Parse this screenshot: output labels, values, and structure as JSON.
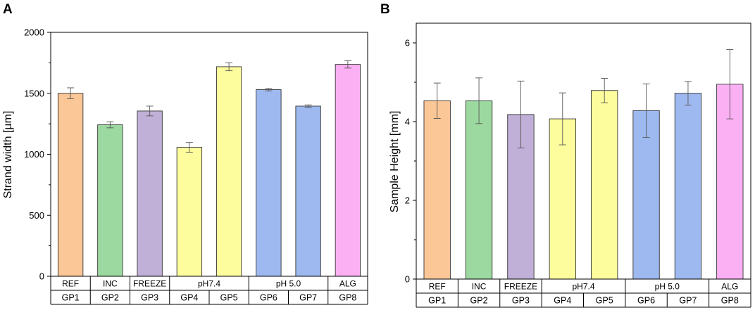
{
  "colors": {
    "GP1": "#fcc797",
    "GP2": "#9cd9a0",
    "GP3": "#c0afd6",
    "GP4": "#fdfd9e",
    "GP5": "#fdfd9e",
    "GP6": "#9eb9ef",
    "GP7": "#9eb9ef",
    "GP8": "#fcb0f4"
  },
  "chart_data": [
    {
      "panel": "A",
      "type": "bar",
      "ylabel": "Strand width [µm]",
      "ylim": [
        0,
        2000
      ],
      "yticks": [
        0,
        500,
        1000,
        1500,
        2000
      ],
      "categories": [
        "GP1",
        "GP2",
        "GP3",
        "GP4",
        "GP5",
        "GP6",
        "GP7",
        "GP8"
      ],
      "values": [
        1500,
        1242,
        1355,
        1057,
        1718,
        1530,
        1395,
        1737
      ],
      "errors": [
        45,
        25,
        40,
        40,
        33,
        10,
        10,
        30
      ],
      "groups": [
        {
          "label": "REF",
          "categories": [
            "GP1"
          ]
        },
        {
          "label": "INC",
          "categories": [
            "GP2"
          ]
        },
        {
          "label": "FREEZE",
          "categories": [
            "GP3"
          ]
        },
        {
          "label": "pH7.4",
          "categories": [
            "GP4",
            "GP5"
          ]
        },
        {
          "label": "pH 5.0",
          "categories": [
            "GP6",
            "GP7"
          ]
        },
        {
          "label": "ALG",
          "categories": [
            "GP8"
          ]
        }
      ],
      "grid": false
    },
    {
      "panel": "B",
      "type": "bar",
      "ylabel": "Sample Height [mm]",
      "ylim": [
        0,
        6.5
      ],
      "yticks": [
        0,
        2,
        4,
        6
      ],
      "categories": [
        "GP1",
        "GP2",
        "GP3",
        "GP4",
        "GP5",
        "GP6",
        "GP7",
        "GP8"
      ],
      "values": [
        4.53,
        4.53,
        4.18,
        4.07,
        4.79,
        4.28,
        4.72,
        4.95
      ],
      "errors": [
        0.45,
        0.58,
        0.85,
        0.66,
        0.31,
        0.68,
        0.3,
        0.88
      ],
      "groups": [
        {
          "label": "REF",
          "categories": [
            "GP1"
          ]
        },
        {
          "label": "INC",
          "categories": [
            "GP2"
          ]
        },
        {
          "label": "FREEZE",
          "categories": [
            "GP3"
          ]
        },
        {
          "label": "pH7.4",
          "categories": [
            "GP4",
            "GP5"
          ]
        },
        {
          "label": "pH 5.0",
          "categories": [
            "GP6",
            "GP7"
          ]
        },
        {
          "label": "ALG",
          "categories": [
            "GP8"
          ]
        }
      ],
      "grid": false
    }
  ]
}
